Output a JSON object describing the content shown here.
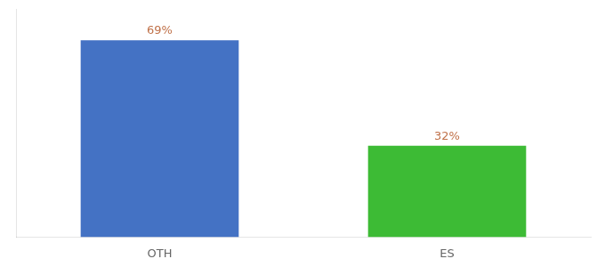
{
  "chart_data": {
    "type": "bar",
    "categories": [
      "OTH",
      "ES"
    ],
    "values": [
      69,
      32
    ],
    "value_labels": [
      "69%",
      "32%"
    ],
    "colors": [
      "#4472c4",
      "#3dbb35"
    ],
    "ylim": [
      0,
      80
    ],
    "data_labels": true,
    "tick_labels": "x",
    "grid": false
  }
}
